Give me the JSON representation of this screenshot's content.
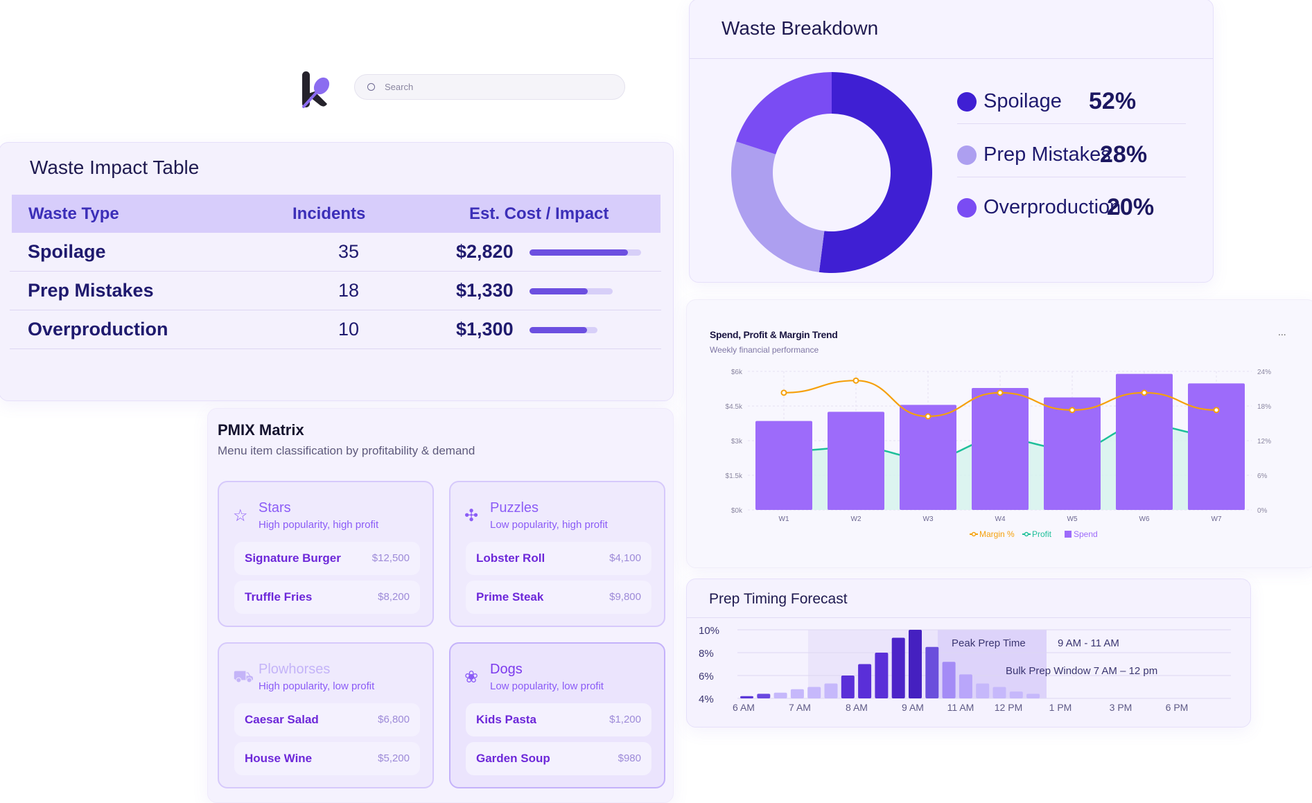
{
  "search": {
    "placeholder": "Search"
  },
  "waste_table": {
    "title": "Waste Impact Table",
    "headers": [
      "Waste Type",
      "Incidents",
      "Est. Cost / Impact"
    ],
    "rows": [
      {
        "type": "Spoilage",
        "incidents": "35",
        "cost": "$2,820",
        "impact": 0.88
      },
      {
        "type": "Prep Mistakes",
        "incidents": "18",
        "cost": "$1,330",
        "impact": 0.7
      },
      {
        "type": "Overproduction",
        "incidents": "10",
        "cost": "$1,300",
        "impact": 0.84
      }
    ]
  },
  "waste_breakdown": {
    "title": "Waste Breakdown",
    "items": [
      {
        "label": "Spoilage",
        "pct": "52%",
        "value": 52,
        "color": "#3f1fd3"
      },
      {
        "label": "Prep Mistakes",
        "pct": "28%",
        "value": 28,
        "color": "#ad9ff0"
      },
      {
        "label": "Overproduction",
        "pct": "20%",
        "value": 20,
        "color": "#7a4cf3"
      }
    ]
  },
  "chart_data": [
    {
      "type": "bar",
      "title": "Spend, Profit & Margin Trend",
      "subtitle": "Weekly financial performance",
      "menu": "...",
      "categories": [
        "W1",
        "W2",
        "W3",
        "W4",
        "W5",
        "W6",
        "W7"
      ],
      "yticks_left": [
        "$0k",
        "$1.5k",
        "$3k",
        "$4.5k",
        "$6k"
      ],
      "ylim_left": [
        0,
        6000
      ],
      "yticks_right": [
        "0%",
        "6%",
        "12%",
        "18%",
        "24%"
      ],
      "ylim_right": [
        0,
        24
      ],
      "series": [
        {
          "name": "Spend",
          "type": "bar",
          "values": [
            3850,
            4250,
            4550,
            5280,
            4870,
            5890,
            5480
          ],
          "color": "#9d6bfa"
        },
        {
          "name": "Profit",
          "type": "area",
          "values": [
            2550,
            2700,
            2250,
            3050,
            2650,
            3650,
            3250
          ],
          "color": "#1fbf9a"
        },
        {
          "name": "Margin %",
          "type": "line",
          "axis": "right",
          "values": [
            20.3,
            22.4,
            16.2,
            20.3,
            17.3,
            20.3,
            17.3
          ],
          "color": "#f5a00b"
        }
      ],
      "legend": [
        "Margin %",
        "Profit",
        "Spend"
      ],
      "legend_position": "bottom",
      "grid": true
    },
    {
      "type": "bar",
      "title": "Prep Timing Forecast",
      "yticks": [
        "4%",
        "6%",
        "8%",
        "10%"
      ],
      "ylim": [
        4,
        10
      ],
      "xticks": [
        "6 AM",
        "7 AM",
        "8 AM",
        "9 AM",
        "11 AM",
        "12 PM",
        "1 PM",
        "3 PM",
        "6 PM"
      ],
      "values": [
        4.2,
        4.4,
        4.5,
        4.8,
        5.0,
        5.3,
        6.0,
        7.0,
        8.0,
        9.3,
        10.0,
        8.5,
        7.2,
        6.1,
        5.3,
        5.0,
        4.6,
        4.4
      ],
      "annotations": [
        {
          "label": "Peak Prep Time",
          "value": "9 AM - 11 AM"
        },
        {
          "label": "Bulk Prep Window 7 AM  – 12 pm"
        }
      ]
    }
  ],
  "pmix": {
    "title": "PMIX Matrix",
    "subtitle": "Menu item classification by profitability & demand",
    "quadrants": [
      {
        "name": "Stars",
        "desc": "High popularity, high profit",
        "icon": "star-icon",
        "items": [
          {
            "name": "Signature Burger",
            "value": "$12,500"
          },
          {
            "name": "Truffle Fries",
            "value": "$8,200"
          }
        ]
      },
      {
        "name": "Puzzles",
        "desc": "Low popularity, high profit",
        "icon": "puzzle-icon",
        "items": [
          {
            "name": "Lobster Roll",
            "value": "$4,100"
          },
          {
            "name": "Prime Steak",
            "value": "$9,800"
          }
        ]
      },
      {
        "name": "Plowhorses",
        "desc": "High popularity, low profit",
        "icon": "tractor-icon",
        "items": [
          {
            "name": "Caesar Salad",
            "value": "$6,800"
          },
          {
            "name": "House Wine",
            "value": "$5,200"
          }
        ]
      },
      {
        "name": "Dogs",
        "desc": "Low popularity, low profit",
        "icon": "dog-icon",
        "items": [
          {
            "name": "Kids Pasta",
            "value": "$1,200"
          },
          {
            "name": "Garden Soup",
            "value": "$980"
          }
        ]
      }
    ]
  }
}
